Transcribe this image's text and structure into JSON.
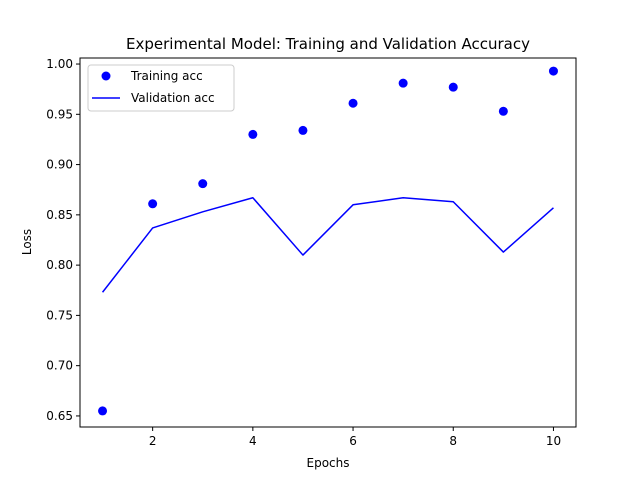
{
  "chart_data": {
    "type": "line",
    "title": "Experimental Model: Training and Validation Accuracy",
    "xlabel": "Epochs",
    "ylabel": "Loss",
    "xlim": [
      0.55,
      10.45
    ],
    "ylim": [
      0.639,
      1.006
    ],
    "xticks": [
      2,
      4,
      6,
      8,
      10
    ],
    "yticks": [
      0.65,
      0.7,
      0.75,
      0.8,
      0.85,
      0.9,
      0.95,
      1.0
    ],
    "x": [
      1,
      2,
      3,
      4,
      5,
      6,
      7,
      8,
      9,
      10
    ],
    "series": [
      {
        "name": "Training acc",
        "style": "markers",
        "color": "#0000ff",
        "values": [
          0.655,
          0.861,
          0.881,
          0.93,
          0.934,
          0.961,
          0.981,
          0.977,
          0.953,
          0.993
        ]
      },
      {
        "name": "Validation acc",
        "style": "line",
        "color": "#0000ff",
        "values": [
          0.773,
          0.837,
          0.853,
          0.867,
          0.81,
          0.86,
          0.867,
          0.863,
          0.813,
          0.857
        ]
      }
    ],
    "legend_position": "top-left",
    "grid": false
  }
}
